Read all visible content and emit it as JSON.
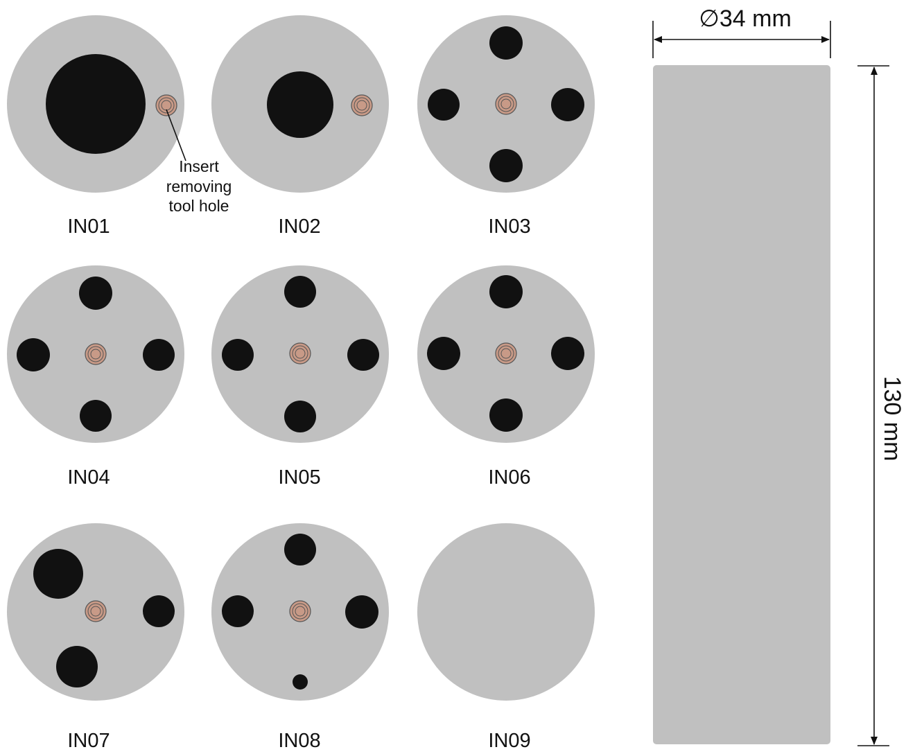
{
  "colors": {
    "disk": "#c0c0c0",
    "hole": "#111111",
    "tool_hole_fill": "#c89a87",
    "tool_hole_ring": "#555555",
    "line": "#111111",
    "background": "#ffffff"
  },
  "inserts": [
    {
      "label": "IN01"
    },
    {
      "label": "IN02"
    },
    {
      "label": "IN03"
    },
    {
      "label": "IN04"
    },
    {
      "label": "IN05"
    },
    {
      "label": "IN06"
    },
    {
      "label": "IN07"
    },
    {
      "label": "IN08"
    },
    {
      "label": "IN09"
    }
  ],
  "annotation": {
    "lines": [
      "Insert",
      "removing",
      "tool hole"
    ]
  },
  "cylinder": {
    "diameter_label": "∅34 mm",
    "height_label": "130 mm"
  }
}
